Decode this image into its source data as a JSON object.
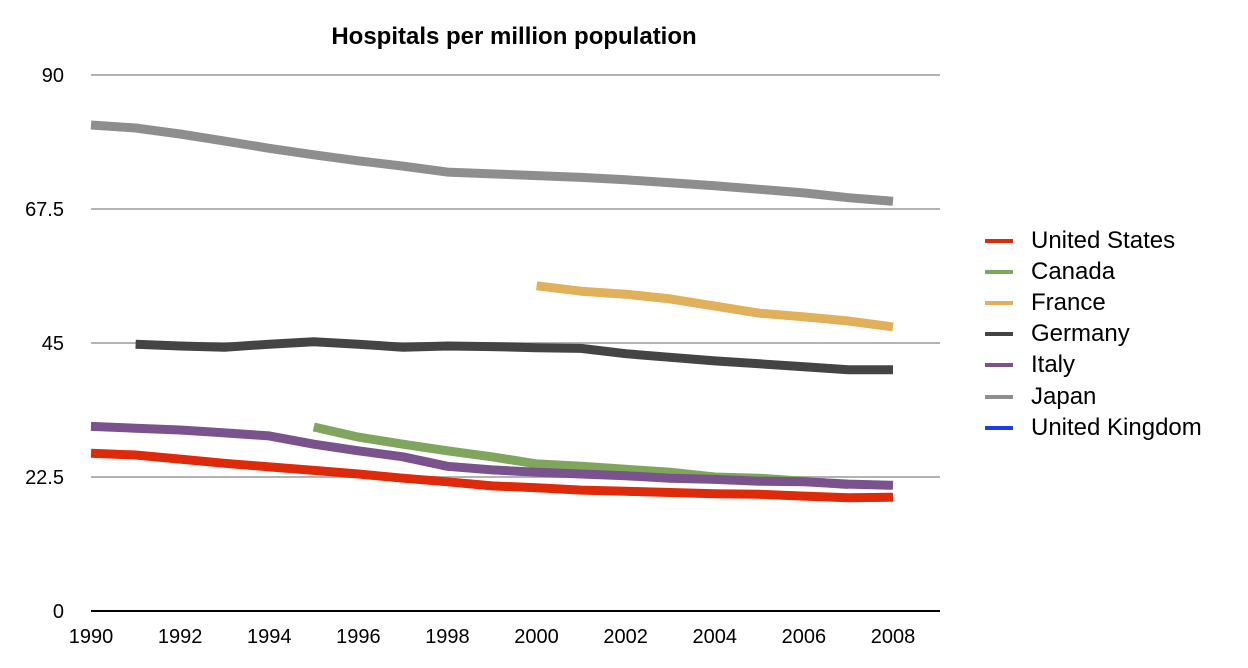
{
  "chart_data": {
    "type": "line",
    "title": "Hospitals per million population",
    "xlabel": "",
    "ylabel": "",
    "x": [
      1990,
      1991,
      1992,
      1993,
      1994,
      1995,
      1996,
      1997,
      1998,
      1999,
      2000,
      2001,
      2002,
      2003,
      2004,
      2005,
      2006,
      2007,
      2008
    ],
    "x_tick_labels": [
      "1990",
      "1992",
      "1994",
      "1996",
      "1998",
      "2000",
      "2002",
      "2004",
      "2006",
      "2008"
    ],
    "y_tick_labels": [
      "0",
      "22.5",
      "45",
      "67.5",
      "90"
    ],
    "y_ticks": [
      0,
      22.5,
      45,
      67.5,
      90
    ],
    "xlim": [
      1990,
      2009
    ],
    "ylim": [
      0,
      90
    ],
    "grid": true,
    "legend_position": "right",
    "series": [
      {
        "name": "United States",
        "color": "#dd2a0a",
        "values": [
          26.5,
          26.2,
          25.5,
          24.8,
          24.2,
          23.6,
          23.0,
          22.3,
          21.7,
          21.0,
          20.7,
          20.3,
          20.1,
          19.9,
          19.7,
          19.6,
          19.3,
          19.0,
          19.1
        ]
      },
      {
        "name": "Canada",
        "color": "#7fa65c",
        "values": [
          null,
          null,
          null,
          null,
          null,
          30.9,
          29.2,
          28.0,
          26.9,
          25.9,
          24.7,
          24.3,
          23.8,
          23.3,
          22.5,
          22.3,
          21.8,
          21.2,
          null
        ]
      },
      {
        "name": "France",
        "color": "#e1b05a",
        "values": [
          null,
          null,
          null,
          null,
          null,
          null,
          null,
          null,
          null,
          null,
          54.6,
          53.7,
          53.2,
          52.4,
          51.2,
          50.0,
          49.4,
          48.7,
          47.7
        ]
      },
      {
        "name": "Germany",
        "color": "#444444",
        "values": [
          null,
          44.8,
          44.5,
          44.3,
          44.8,
          45.2,
          44.8,
          44.3,
          44.5,
          44.4,
          44.2,
          44.1,
          43.2,
          42.6,
          42.0,
          41.5,
          41.0,
          40.5,
          40.5
        ]
      },
      {
        "name": "Italy",
        "color": "#7a528e",
        "values": [
          31.0,
          30.7,
          30.4,
          29.9,
          29.4,
          28.0,
          26.9,
          25.9,
          24.3,
          23.7,
          23.3,
          23.0,
          22.7,
          22.3,
          22.1,
          21.8,
          21.7,
          21.3,
          21.1
        ]
      },
      {
        "name": "Japan",
        "color": "#8e8e8e",
        "values": [
          81.6,
          81.1,
          80.1,
          78.9,
          77.7,
          76.6,
          75.6,
          74.7,
          73.7,
          73.4,
          73.1,
          72.8,
          72.4,
          71.9,
          71.4,
          70.8,
          70.2,
          69.4,
          68.8
        ]
      },
      {
        "name": "United Kingdom",
        "color": "#1f3de6",
        "values": [
          null,
          null,
          null,
          null,
          null,
          null,
          null,
          null,
          null,
          null,
          null,
          null,
          null,
          null,
          null,
          null,
          null,
          null,
          null
        ]
      }
    ]
  }
}
